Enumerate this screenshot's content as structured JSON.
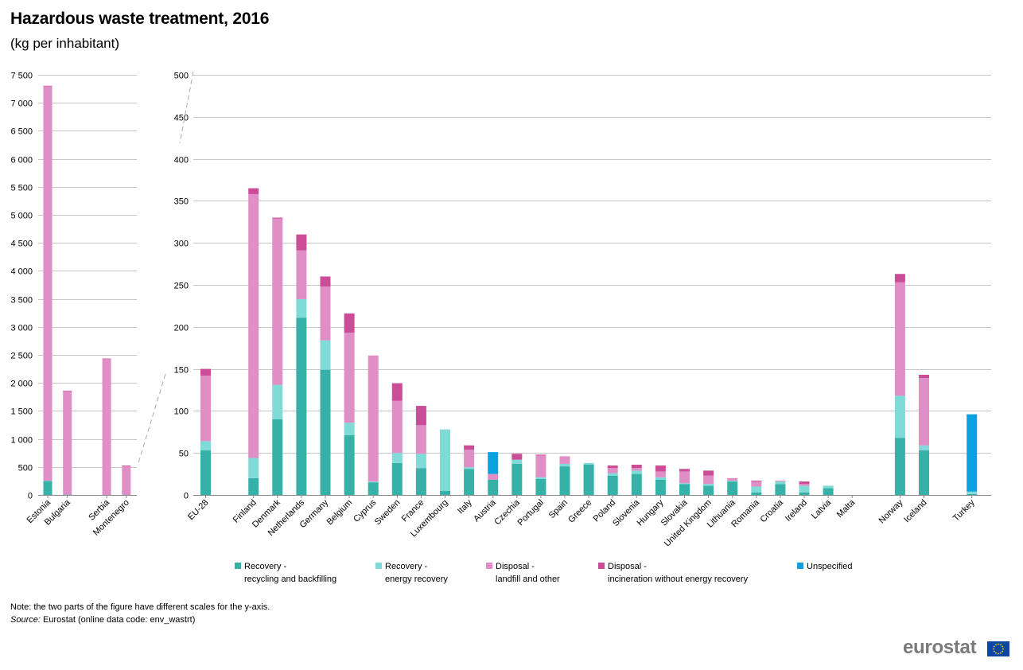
{
  "title": "Hazardous waste treatment, 2016",
  "subtitle": "(kg per inhabitant)",
  "note": "Note: the two parts of the figure have different scales for the y-axis.",
  "source_label": "Source:",
  "source_text": " Eurostat (online data code: env_wastrt)",
  "logo_text": "eurostat",
  "logo_icon": "eu-flag-icon",
  "colors": {
    "recycling": "#36b1a8",
    "energy": "#7fdad8",
    "landfill": "#df8fc6",
    "incineration": "#cb4c97",
    "unspecified": "#0aa1e0",
    "grid": "#c6c6c6",
    "axis": "#888888"
  },
  "legend": [
    {
      "key": "recycling",
      "line1": "Recovery -",
      "line2": "recycling and backfilling"
    },
    {
      "key": "energy",
      "line1": "Recovery -",
      "line2": "energy  recovery"
    },
    {
      "key": "landfill",
      "line1": "Disposal -",
      "line2": "landfill and other"
    },
    {
      "key": "incineration",
      "line1": "Disposal -",
      "line2": "incineration without energy recovery"
    },
    {
      "key": "unspecified",
      "line1": "Unspecified",
      "line2": ""
    }
  ],
  "chart_data": [
    {
      "type": "bar",
      "stacked": true,
      "title": "",
      "ylim": [
        0,
        7500
      ],
      "yticks": [
        0,
        500,
        1000,
        1500,
        2000,
        2500,
        3000,
        3500,
        4000,
        4500,
        5000,
        5500,
        6000,
        6500,
        7000,
        7500
      ],
      "yticklabels": [
        "0",
        "500",
        "1 000",
        "1 500",
        "2 000",
        "2 500",
        "3 000",
        "3 500",
        "4 000",
        "4 500",
        "5 000",
        "5 500",
        "6 000",
        "6 500",
        "7 000",
        "7 500"
      ],
      "grid": true,
      "categories": [
        "Estonia",
        "Bulgaria",
        "Serbia",
        "Montenegro"
      ],
      "gap_after": [
        1
      ],
      "series": [
        {
          "key": "recycling",
          "name": "Recovery - recycling and backfilling",
          "values": [
            250,
            5,
            0,
            0
          ]
        },
        {
          "key": "energy",
          "name": "Recovery - energy  recovery",
          "values": [
            5,
            0,
            0,
            0
          ]
        },
        {
          "key": "landfill",
          "name": "Disposal - landfill and other",
          "values": [
            7045,
            1845,
            2440,
            520
          ]
        },
        {
          "key": "incineration",
          "name": "Disposal - incineration without energy recovery",
          "values": [
            5,
            10,
            0,
            5
          ]
        },
        {
          "key": "unspecified",
          "name": "Unspecified",
          "values": [
            0,
            0,
            0,
            0
          ]
        }
      ]
    },
    {
      "type": "bar",
      "stacked": true,
      "title": "",
      "ylim": [
        0,
        500
      ],
      "yticks": [
        0,
        50,
        100,
        150,
        200,
        250,
        300,
        350,
        400,
        450,
        500
      ],
      "yticklabels": [
        "0",
        "50",
        "100",
        "150",
        "200",
        "250",
        "300",
        "350",
        "400",
        "450",
        "500"
      ],
      "grid": true,
      "categories": [
        "EU-28",
        "Finland",
        "Denmark",
        "Netherlands",
        "Germany",
        "Belgium",
        "Cyprus",
        "Sweden",
        "France",
        "Luxembourg",
        "Italy",
        "Austria",
        "Czechia",
        "Portugal",
        "Spain",
        "Greece",
        "Poland",
        "Slovenia",
        "Hungary",
        "Slovakia",
        "United Kingdom",
        "Lithuania",
        "Romania",
        "Croatia",
        "Ireland",
        "Latvia",
        "Malta",
        "Norway",
        "Iceland",
        "Turkey"
      ],
      "gap_after": [
        0,
        26,
        28
      ],
      "series": [
        {
          "key": "recycling",
          "name": "Recovery - recycling and backfilling",
          "values": [
            53,
            20,
            90,
            211,
            149,
            71,
            15,
            38,
            32,
            5,
            31,
            18,
            37,
            19,
            34,
            36,
            23,
            25,
            18,
            13,
            11,
            16,
            3,
            13,
            3,
            8,
            0,
            68,
            53,
            1
          ]
        },
        {
          "key": "energy",
          "name": "Recovery - energy  recovery",
          "values": [
            11,
            24,
            41,
            22,
            35,
            15,
            1,
            12,
            17,
            73,
            2,
            0,
            5,
            2,
            3,
            2,
            3,
            4,
            3,
            1,
            2,
            1,
            7,
            3,
            8,
            3,
            0,
            50,
            6,
            3
          ]
        },
        {
          "key": "landfill",
          "name": "Disposal - landfill and other",
          "values": [
            78,
            314,
            198,
            58,
            64,
            107,
            150,
            62,
            34,
            0,
            21,
            7,
            0,
            26,
            9,
            0,
            6,
            3,
            7,
            14,
            10,
            3,
            6,
            1,
            2,
            0,
            0,
            135,
            80,
            0
          ]
        },
        {
          "key": "incineration",
          "name": "Disposal - incineration without energy recovery",
          "values": [
            8,
            7,
            1,
            19,
            12,
            23,
            0,
            21,
            23,
            0,
            5,
            0,
            7,
            1,
            0,
            0,
            3,
            4,
            7,
            3,
            6,
            0,
            1,
            0,
            3,
            0,
            0,
            10,
            4,
            0
          ]
        },
        {
          "key": "unspecified",
          "name": "Unspecified",
          "values": [
            0,
            0,
            0,
            0,
            0,
            0,
            0,
            0,
            0,
            0,
            0,
            26,
            0,
            0,
            0,
            0,
            0,
            0,
            0,
            0,
            0,
            0,
            0,
            0,
            0,
            0,
            0,
            0,
            0,
            92
          ]
        }
      ]
    }
  ]
}
